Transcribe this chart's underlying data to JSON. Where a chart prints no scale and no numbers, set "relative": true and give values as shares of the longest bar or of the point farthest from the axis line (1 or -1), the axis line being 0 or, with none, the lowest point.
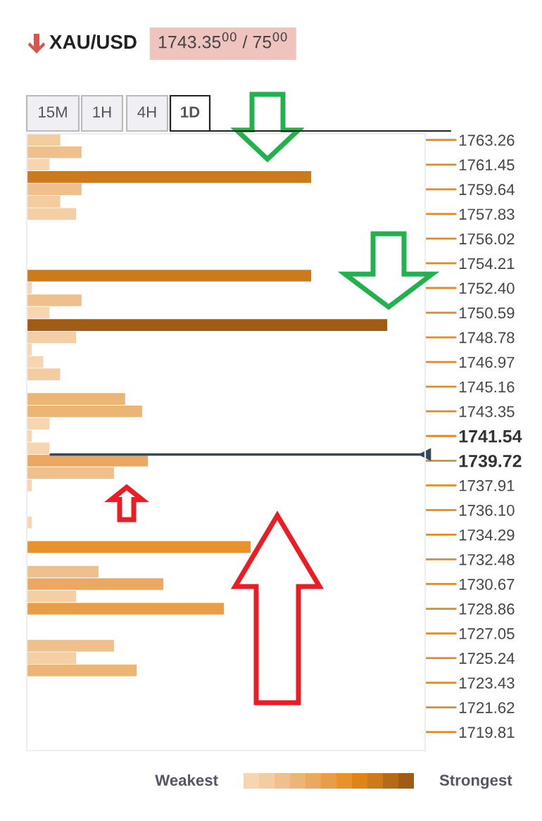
{
  "chart_data": {
    "type": "bar",
    "orientation": "horizontal",
    "relative": true,
    "title": "XAU/USD",
    "subtitle": "1743.35$^{00}$ / 75$^{00}$",
    "categories": [
      "1763.26",
      null,
      "1761.45",
      null,
      "1759.64",
      null,
      "1757.83",
      null,
      "1756.02",
      null,
      "1754.21",
      null,
      "1752.40",
      null,
      "1750.59",
      null,
      "1748.78",
      null,
      "1746.97",
      null,
      "1745.16",
      null,
      "1743.35",
      null,
      "1741.54",
      null,
      "1739.72",
      null,
      "1737.91",
      null,
      "1736.10",
      null,
      "1734.29",
      null,
      "1732.48",
      null,
      "1730.67",
      null,
      "1728.86",
      null,
      "1727.05",
      null,
      "1725.24",
      null,
      "1723.43",
      null,
      "1721.62",
      null,
      "1719.81",
      null
    ],
    "values": [
      0.093,
      0.152,
      0.063,
      0.789,
      0.152,
      0.093,
      0.137,
      0,
      0,
      0,
      0,
      0.789,
      0.014,
      0.152,
      0.063,
      1.0,
      0.137,
      0.014,
      0.046,
      0.093,
      0,
      0.273,
      0.32,
      0.063,
      0.014,
      0.063,
      0.336,
      0.242,
      0.014,
      0,
      0,
      0.014,
      0,
      0.621,
      0,
      0.199,
      0.379,
      0.137,
      0.547,
      0,
      0,
      0.242,
      0.137,
      0.305,
      0,
      0,
      0,
      0,
      0,
      0
    ],
    "colors": [
      "#f3cc9f",
      "#f0c08c",
      "#f6d5b0",
      "#cd7a1a",
      "#f0c08c",
      "#f3cc9f",
      "#f3cfa3",
      "#f6d5b0",
      "#f6d5b0",
      "#f6d5b0",
      "#f6d5b0",
      "#cd7a1a",
      "#f6d5b0",
      "#f0c08c",
      "#f6d5b0",
      "#a05c14",
      "#f3cfa3",
      "#f6d5b0",
      "#f6d5b0",
      "#f3cc9f",
      "#f6d5b0",
      "#edb574",
      "#edb574",
      "#f6d5b0",
      "#f6d5b0",
      "#f6d5b0",
      "#eaa862",
      "#f0c08c",
      "#f6d5b0",
      "#f6d5b0",
      "#f6d5b0",
      "#f6d5b0",
      "#f6d5b0",
      "#e8922c",
      "#f6d5b0",
      "#f0c08c",
      "#eaa862",
      "#f3cfa3",
      "#e89e48",
      "#f6d5b0",
      "#f6d5b0",
      "#f0c08c",
      "#f3cfa3",
      "#edb574",
      "#f6d5b0",
      "#f6d5b0",
      "#f6d5b0",
      "#f6d5b0",
      "#f6d5b0",
      "#f6d5b0"
    ],
    "ref_lines": [
      {
        "axis": "y",
        "value": "1739.72",
        "color": "#34495e"
      }
    ],
    "annotations": [
      "15M",
      "1H",
      "4H",
      "1D",
      "Weakest",
      "Strongest"
    ],
    "grid": false,
    "legend": false
  }
}
